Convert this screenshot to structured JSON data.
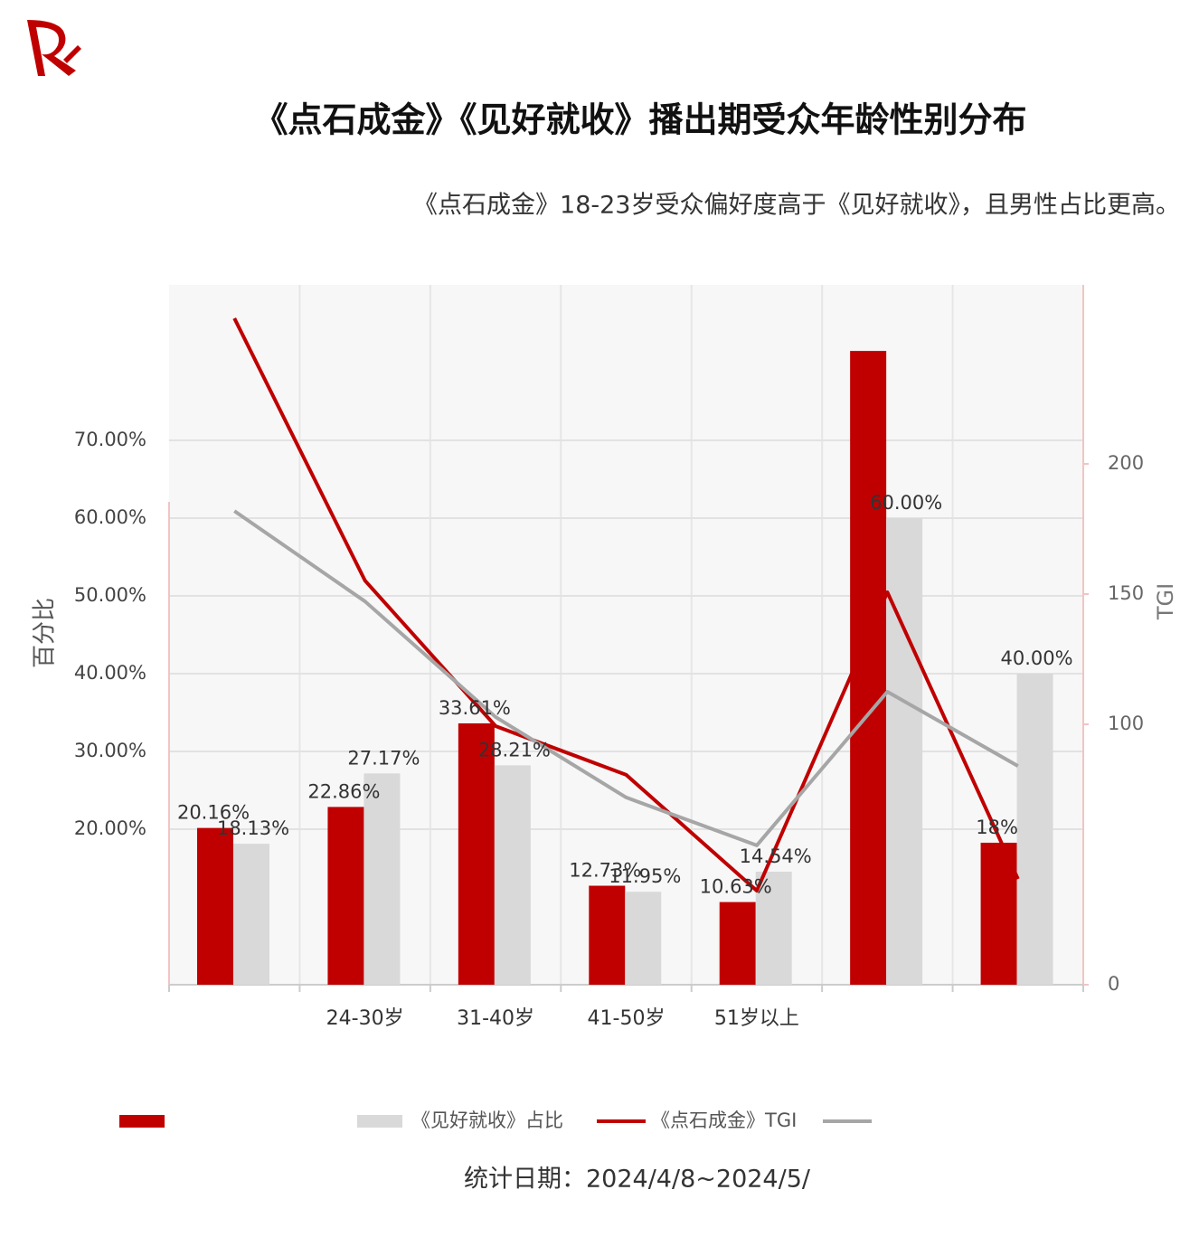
{
  "chart_data": {
    "type": "bar",
    "title": "《点石成金》《见好就收》播出期受众年龄性别分布",
    "subtitle": "《点石成金》18-23岁受众偏好度高于《见好就收》，且男性占比更高。",
    "footnote": "统计日期：2024/4/8~2024/5/",
    "ylabel": "百分比",
    "y2label": "TGI",
    "categories": [
      null,
      "24-30岁",
      "31-40岁",
      "41-50岁",
      "51岁以上",
      null,
      null
    ],
    "series": [
      {
        "name": null,
        "type": "bar",
        "color": "#c00000",
        "values": [
          20.16,
          22.86,
          33.61,
          12.73,
          10.63,
          81.5,
          18.26
        ],
        "value_labels": [
          "20.16%",
          "22.86%",
          "33.61%",
          "12.73%",
          "10.63%",
          null,
          "18%"
        ]
      },
      {
        "name": "《见好就收》占比",
        "type": "bar",
        "color": "#d9d9d9",
        "values": [
          18.13,
          27.17,
          28.21,
          11.95,
          14.54,
          60.0,
          40.0
        ],
        "value_labels": [
          "18.13%",
          "27.17%",
          "28.21%",
          "11.95%",
          "14.54%",
          "60.00%",
          "40.00%"
        ]
      },
      {
        "name": "《点石成金》TGI",
        "type": "line",
        "axis": "y2",
        "color": "#c00000",
        "values": [
          255.9,
          155.2,
          99.3,
          80.6,
          36.1,
          150.7,
          40.6
        ]
      },
      {
        "name": null,
        "type": "line",
        "axis": "y2",
        "color": "#a6a6a6",
        "values": [
          181.9,
          147.2,
          102.8,
          71.9,
          53.5,
          112.5,
          84.0
        ]
      }
    ],
    "ylim": [
      0,
      90
    ],
    "yticks": [
      {
        "value": 20,
        "label": "20.00%"
      },
      {
        "value": 30,
        "label": "30.00%"
      },
      {
        "value": 40,
        "label": "40.00%"
      },
      {
        "value": 50,
        "label": "50.00%"
      },
      {
        "value": 60,
        "label": "60.00%"
      },
      {
        "value": 70,
        "label": "70.00%"
      }
    ],
    "y2lim": [
      0,
      268.75
    ],
    "y2ticks": [
      0,
      100,
      150,
      200
    ],
    "grid": true
  }
}
